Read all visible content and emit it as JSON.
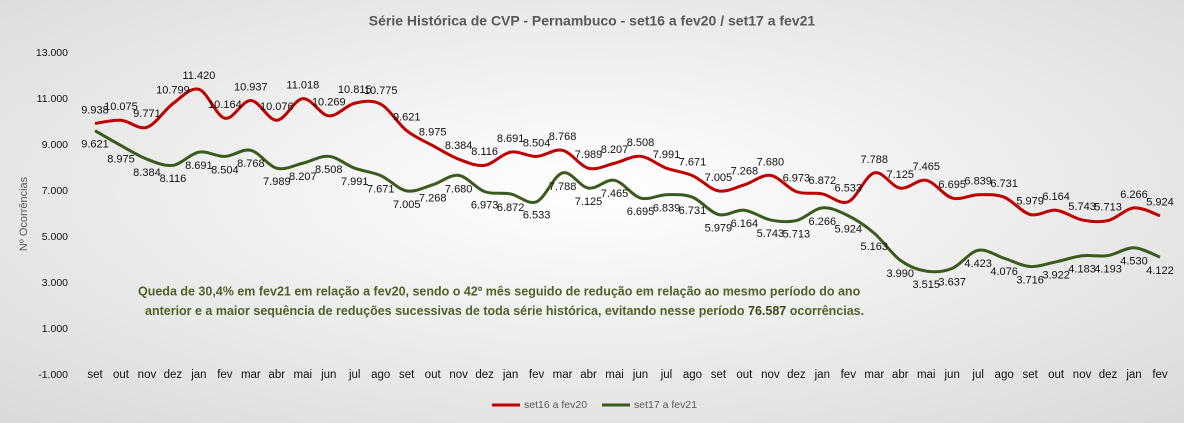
{
  "chart_data": {
    "type": "line",
    "title": "Série Histórica de CVP - Pernambuco - set16 a fev20 /  set17 a fev21",
    "y_label": "Nº Ocorrências",
    "categories": [
      "set",
      "out",
      "nov",
      "dez",
      "jan",
      "fev",
      "mar",
      "abr",
      "mai",
      "jun",
      "jul",
      "ago",
      "set",
      "out",
      "nov",
      "dez",
      "jan",
      "fev",
      "mar",
      "abr",
      "mai",
      "jun",
      "jul",
      "ago",
      "set",
      "out",
      "nov",
      "dez",
      "jan",
      "fev",
      "mar",
      "abr",
      "mai",
      "jun",
      "jul",
      "ago",
      "set",
      "out",
      "nov",
      "dez",
      "jan",
      "fev"
    ],
    "series": [
      {
        "name": "set16 a fev20",
        "color": "#c00000",
        "values": [
          9938,
          10075,
          9771,
          10799,
          11420,
          10164,
          10937,
          10076,
          11018,
          10269,
          10815,
          10775,
          9621,
          8975,
          8384,
          8116,
          8691,
          8504,
          8768,
          7989,
          8207,
          8508,
          7991,
          7671,
          7005,
          7268,
          7680,
          6973,
          6872,
          6533,
          7788,
          7125,
          7465,
          6695,
          6839,
          6731,
          5979,
          6164,
          5743,
          5713,
          6266,
          5924
        ],
        "value_labels": [
          "9.938",
          "10.075",
          "9.771",
          "10.799",
          "11.420",
          "10.164",
          "10.937",
          "10.076",
          "11.018",
          "10.269",
          "10.815",
          "10.775",
          "9.621",
          "8.975",
          "8.384",
          "8.116",
          "8.691",
          "8.504",
          "8.768",
          "7.989",
          "8.207",
          "8.508",
          "7.991",
          "7.671",
          "7.005",
          "7.268",
          "7.680",
          "6.973",
          "6.872",
          "6.533",
          "7.788",
          "7.125",
          "7.465",
          "6.695",
          "6.839",
          "6.731",
          "5.979",
          "6.164",
          "5.743",
          "5.713",
          "6.266",
          "5.924"
        ]
      },
      {
        "name": "set17 a fev21",
        "color": "#3a5a1e",
        "values": [
          9621,
          8975,
          8384,
          8116,
          8691,
          8504,
          8768,
          7989,
          8207,
          8508,
          7991,
          7671,
          7005,
          7268,
          7680,
          6973,
          6872,
          6533,
          7788,
          7125,
          7465,
          6695,
          6839,
          6731,
          5979,
          6164,
          5743,
          5713,
          6266,
          5924,
          5163,
          3990,
          3515,
          3637,
          4423,
          4076,
          3716,
          3922,
          4183,
          4193,
          4530,
          4122
        ],
        "value_labels": [
          "9.621",
          "8.975",
          "8.384",
          "8.116",
          "8.691",
          "8.504",
          "8.768",
          "7.989",
          "8.207",
          "8.508",
          "7.991",
          "7.671",
          "7.005",
          "7.268",
          "7.680",
          "6.973",
          "6.872",
          "6.533",
          "7.788",
          "7.125",
          "7.465",
          "6.695",
          "6.839",
          "6.731",
          "5.979",
          "6.164",
          "5.743",
          "5.713",
          "6.266",
          "5.924",
          "5.163",
          "3.990",
          "3.515",
          "3.637",
          "4.423",
          "4.076",
          "3.716",
          "3.922",
          "4.183",
          "4.193",
          "4.530",
          "4.122"
        ]
      }
    ],
    "ylim": [
      -1000,
      13000
    ],
    "yticks": [
      {
        "value": -1000,
        "label": "-1.000"
      },
      {
        "value": 1000,
        "label": "1.000"
      },
      {
        "value": 3000,
        "label": "3.000"
      },
      {
        "value": 5000,
        "label": "5.000"
      },
      {
        "value": 7000,
        "label": "7.000"
      },
      {
        "value": 9000,
        "label": "9.000"
      },
      {
        "value": 11000,
        "label": "11.000"
      },
      {
        "value": 13000,
        "label": "13.000"
      }
    ],
    "grid": false,
    "legend": "bottom",
    "annotation": [
      "Queda de 30,4% em fev21 em relação a fev20, sendo o 42º mês seguido de redução em relação ao mesmo período do ano",
      "anterior e a maior sequência de reduções sucessivas de toda série histórica, evitando nesse período",
      "76.587",
      "ocorrências."
    ]
  }
}
